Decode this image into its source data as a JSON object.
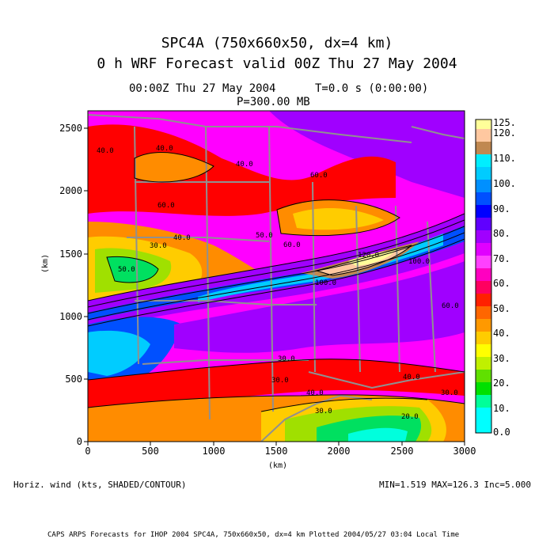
{
  "header": {
    "title1": "SPC4A (750x660x50, dx=4 km)",
    "title2": "0 h WRF Forecast valid 00Z Thu 27 May 2004",
    "time_line": "00:00Z Thu 27 May 2004",
    "t_line": "T=0.0 s (0:00:00)",
    "p_line": "P=300.00 MB"
  },
  "axes": {
    "x_label": "(km)",
    "y_label": "(km)",
    "x_ticks": [
      "0",
      "500",
      "1000",
      "1500",
      "2000",
      "2500",
      "3000"
    ],
    "y_ticks": [
      "0",
      "500",
      "1000",
      "1500",
      "2000",
      "2500"
    ]
  },
  "colorbar": {
    "labels": [
      "125.",
      "120.",
      "110.",
      "100.",
      "90.",
      "80.",
      "70.",
      "60.",
      "50.",
      "40.",
      "30.",
      "20.",
      "10.",
      "0.0"
    ]
  },
  "contour_labels": [
    "40.0",
    "40.0",
    "60.0",
    "40.0",
    "30.0",
    "50.0",
    "60.0",
    "60.0",
    "120.0",
    "100.0",
    "100.0",
    "30.0",
    "30.0",
    "40.0",
    "40.0",
    "30.0",
    "30.0",
    "20.0",
    "60.0",
    "40.0",
    "50.0"
  ],
  "footer": {
    "variable": "Horiz. wind (kts, SHADED/CONTOUR)",
    "stats": "MIN=1.519  MAX=126.3  Inc=5.000",
    "credit": "CAPS ARPS Forecasts for IHOP 2004  SPC4A, 750x660x50, dx=4 km  Plotted 2004/05/27 03:04 Local Time"
  },
  "colors": {
    "magenta": "#ff00ff",
    "red": "#ff0000",
    "orange": "#ff8c00",
    "yellow": "#ffcc00",
    "purple": "#a000ff",
    "blue": "#0050ff",
    "cyan": "#00ccff",
    "green": "#00e000",
    "lightyellow": "#ffff99",
    "tan": "#c08850",
    "peach": "#ffc8a0",
    "borders": "#909090"
  }
}
